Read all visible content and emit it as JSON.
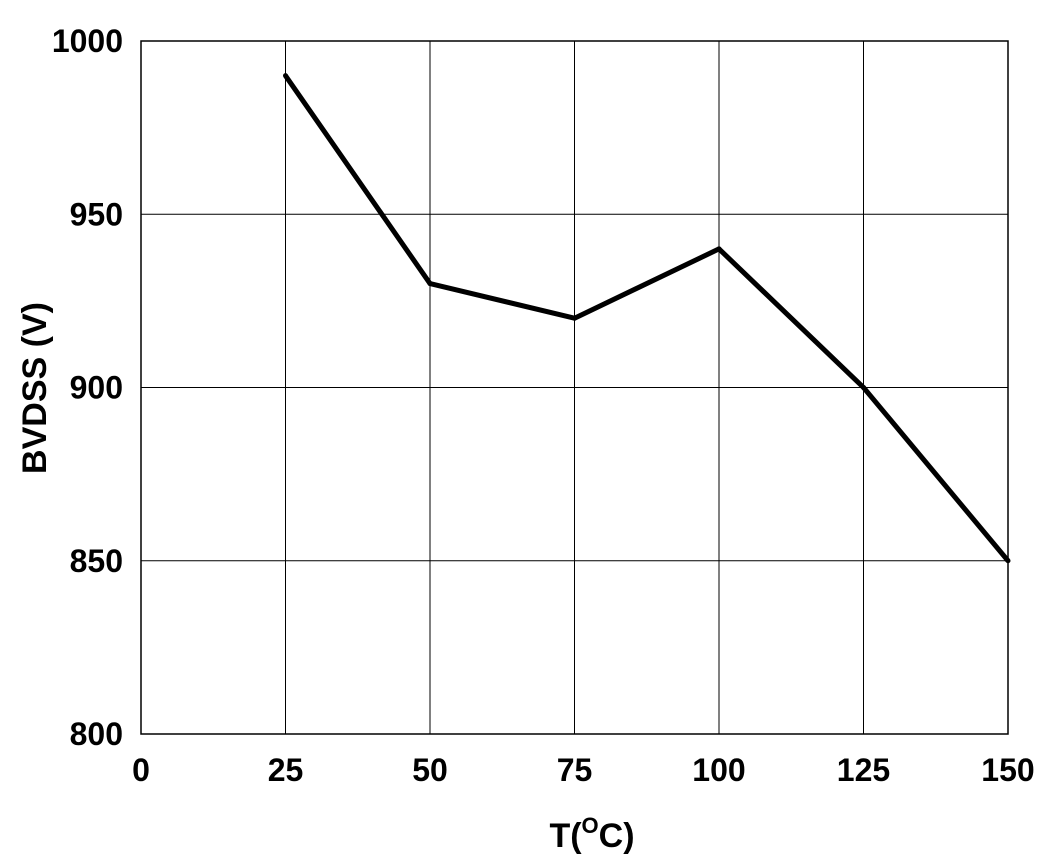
{
  "chart_data": {
    "type": "line",
    "title": "",
    "xlabel": "T(",
    "xlabel_superscript": "O",
    "xlabel_suffix": "C)",
    "ylabel": "BVDSS (V)",
    "xlim": [
      0,
      150
    ],
    "ylim": [
      800,
      1000
    ],
    "xticks": [
      "0",
      "25",
      "50",
      "75",
      "100",
      "125",
      "150"
    ],
    "yticks": [
      "800",
      "850",
      "900",
      "950",
      "1000"
    ],
    "grid": true,
    "legend": "none",
    "series": [
      {
        "x": [
          25,
          50,
          75,
          100,
          125,
          150
        ],
        "y": [
          990,
          930,
          920,
          940,
          900,
          850
        ],
        "color": "#000000"
      }
    ]
  }
}
